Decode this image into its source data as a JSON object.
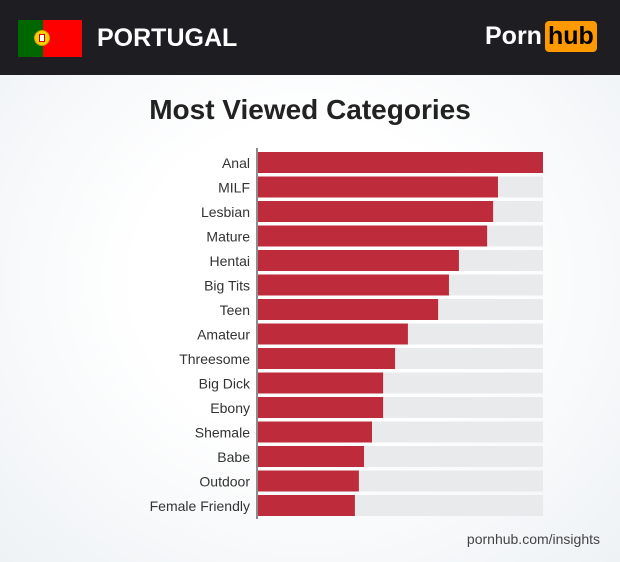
{
  "header": {
    "country": "PORTUGAL",
    "logo_left": "Porn",
    "logo_right": "hub",
    "icon": "portugal-flag-icon"
  },
  "source": "pornhub.com/insights",
  "colors": {
    "bar": "#be2c3b",
    "track": "#e9eaec",
    "header": "#1e1e22",
    "logo_accent": "#ff9900"
  },
  "chart_data": {
    "type": "bar",
    "orientation": "horizontal",
    "title": "Most Viewed Categories",
    "xlabel": "",
    "ylabel": "",
    "xlim": [
      0,
      100
    ],
    "grid": false,
    "categories": [
      "Anal",
      "MILF",
      "Lesbian",
      "Mature",
      "Hentai",
      "Big Tits",
      "Teen",
      "Amateur",
      "Threesome",
      "Big Dick",
      "Ebony",
      "Shemale",
      "Babe",
      "Outdoor",
      "Female Friendly"
    ],
    "values": [
      100,
      84.2,
      82.5,
      80.4,
      70.5,
      67,
      63.2,
      52.6,
      48.1,
      43.9,
      43.9,
      40,
      37.2,
      35.4,
      34
    ]
  }
}
